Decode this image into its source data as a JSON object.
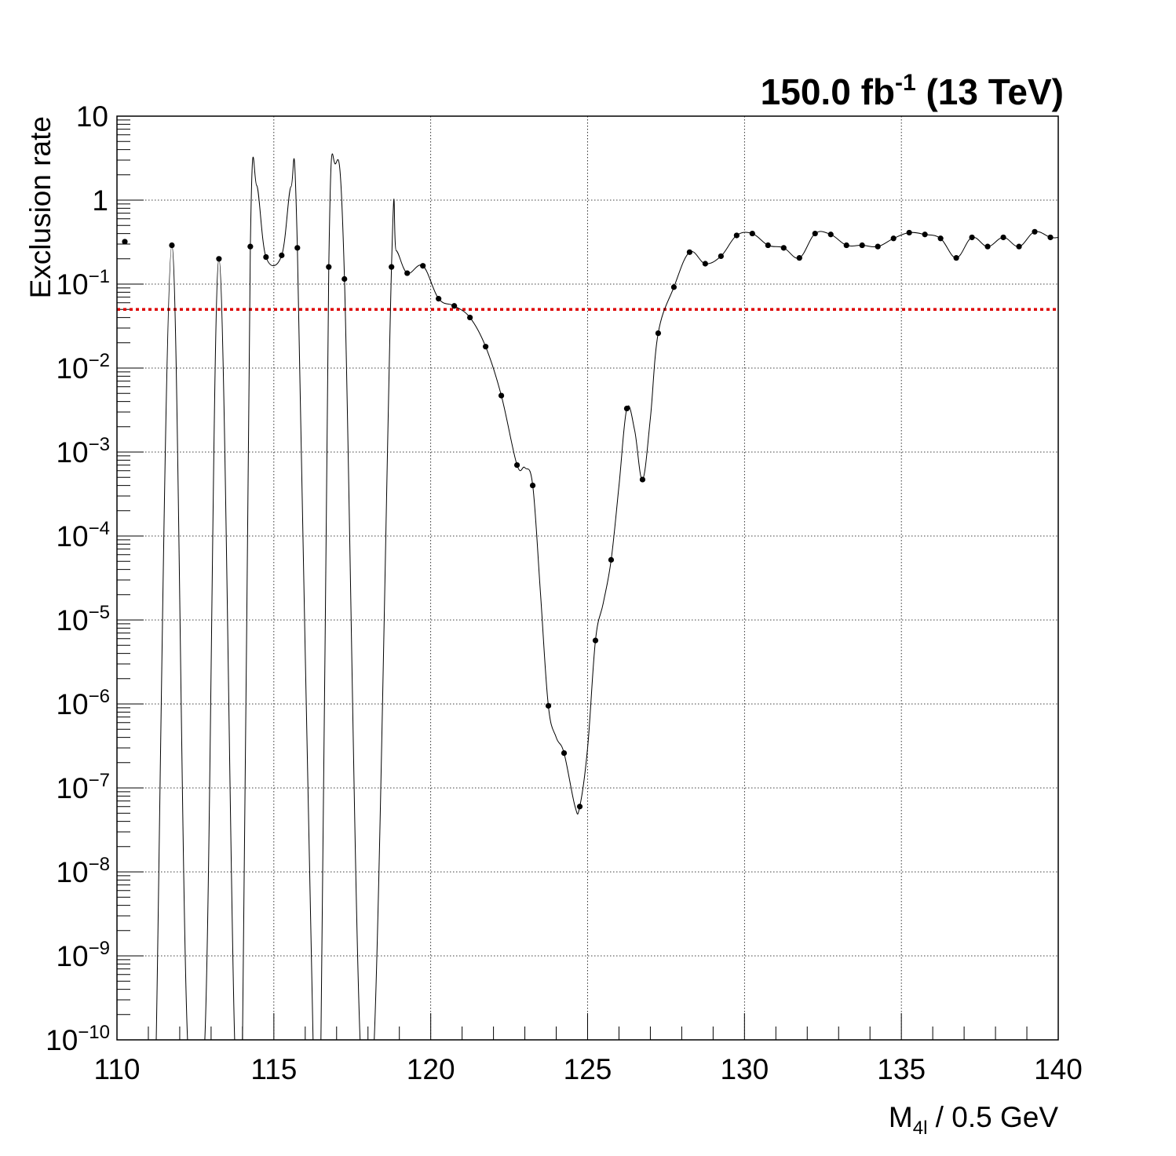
{
  "chart_data": {
    "type": "scatter",
    "header": {
      "lumi_value": "150.0 fb",
      "lumi_exponent": "-1",
      "energy": "(13 TeV)"
    },
    "xlabel": {
      "main": "M",
      "subscript": "4l",
      "suffix": " / 0.5 GeV"
    },
    "ylabel": "Exclusion rate",
    "xlim": [
      110,
      140
    ],
    "ylim": [
      1e-10,
      10
    ],
    "y_scale": "log",
    "grid": true,
    "x_ticks": [
      "110",
      "115",
      "120",
      "125",
      "130",
      "135",
      "140"
    ],
    "y_ticks": [
      {
        "value": 1e-10,
        "mantissa": "10",
        "exponent": "−10"
      },
      {
        "value": 1e-09,
        "mantissa": "10",
        "exponent": "−9"
      },
      {
        "value": 1e-08,
        "mantissa": "10",
        "exponent": "−8"
      },
      {
        "value": 1e-07,
        "mantissa": "10",
        "exponent": "−7"
      },
      {
        "value": 1e-06,
        "mantissa": "10",
        "exponent": "−6"
      },
      {
        "value": 1e-05,
        "mantissa": "10",
        "exponent": "−5"
      },
      {
        "value": 0.0001,
        "mantissa": "10",
        "exponent": "−4"
      },
      {
        "value": 0.001,
        "mantissa": "10",
        "exponent": "−3"
      },
      {
        "value": 0.01,
        "mantissa": "10",
        "exponent": "−2"
      },
      {
        "value": 0.1,
        "mantissa": "10",
        "exponent": "−1"
      },
      {
        "value": 1,
        "mantissa": "1",
        "exponent": ""
      },
      {
        "value": 10,
        "mantissa": "10",
        "exponent": ""
      }
    ],
    "threshold": {
      "value": 0.05,
      "color": "#dd0000",
      "style": "dotted"
    },
    "marker_color": "#000000",
    "points": [
      {
        "x": 110.25,
        "y": 0.32
      },
      {
        "x": 111.75,
        "y": 0.29
      },
      {
        "x": 113.25,
        "y": 0.2
      },
      {
        "x": 114.25,
        "y": 0.28
      },
      {
        "x": 114.75,
        "y": 0.21
      },
      {
        "x": 115.25,
        "y": 0.22
      },
      {
        "x": 115.75,
        "y": 0.27
      },
      {
        "x": 116.75,
        "y": 0.16
      },
      {
        "x": 117.25,
        "y": 0.115
      },
      {
        "x": 118.75,
        "y": 0.16
      },
      {
        "x": 119.25,
        "y": 0.135
      },
      {
        "x": 119.75,
        "y": 0.165
      },
      {
        "x": 120.25,
        "y": 0.067
      },
      {
        "x": 120.75,
        "y": 0.055
      },
      {
        "x": 121.25,
        "y": 0.04
      },
      {
        "x": 121.75,
        "y": 0.018
      },
      {
        "x": 122.25,
        "y": 0.0047
      },
      {
        "x": 122.75,
        "y": 0.0007
      },
      {
        "x": 123.25,
        "y": 0.0004
      },
      {
        "x": 123.75,
        "y": 9.5e-07
      },
      {
        "x": 124.25,
        "y": 2.6e-07
      },
      {
        "x": 124.75,
        "y": 6e-08
      },
      {
        "x": 125.25,
        "y": 5.7e-06
      },
      {
        "x": 125.75,
        "y": 5.2e-05
      },
      {
        "x": 126.25,
        "y": 0.0033
      },
      {
        "x": 126.75,
        "y": 0.00047
      },
      {
        "x": 127.25,
        "y": 0.026
      },
      {
        "x": 127.75,
        "y": 0.092
      },
      {
        "x": 128.25,
        "y": 0.24
      },
      {
        "x": 128.75,
        "y": 0.175
      },
      {
        "x": 129.25,
        "y": 0.215
      },
      {
        "x": 129.75,
        "y": 0.38
      },
      {
        "x": 130.25,
        "y": 0.4
      },
      {
        "x": 130.75,
        "y": 0.29
      },
      {
        "x": 131.25,
        "y": 0.27
      },
      {
        "x": 131.75,
        "y": 0.205
      },
      {
        "x": 132.25,
        "y": 0.4
      },
      {
        "x": 132.75,
        "y": 0.39
      },
      {
        "x": 133.25,
        "y": 0.29
      },
      {
        "x": 133.75,
        "y": 0.29
      },
      {
        "x": 134.25,
        "y": 0.28
      },
      {
        "x": 134.75,
        "y": 0.35
      },
      {
        "x": 135.25,
        "y": 0.41
      },
      {
        "x": 135.75,
        "y": 0.39
      },
      {
        "x": 136.25,
        "y": 0.35
      },
      {
        "x": 136.75,
        "y": 0.205
      },
      {
        "x": 137.25,
        "y": 0.36
      },
      {
        "x": 137.75,
        "y": 0.28
      },
      {
        "x": 138.25,
        "y": 0.36
      },
      {
        "x": 138.75,
        "y": 0.28
      },
      {
        "x": 139.25,
        "y": 0.42
      },
      {
        "x": 139.75,
        "y": 0.36
      }
    ],
    "curve": [
      {
        "x": 111.25,
        "y": 1e-10
      },
      {
        "x": 111.75,
        "y": 0.29
      },
      {
        "x": 112.25,
        "y": 1e-10
      },
      {
        "x": 112.8,
        "y": 1e-10
      },
      {
        "x": 113.25,
        "y": 0.2
      },
      {
        "x": 113.75,
        "y": 1e-10
      },
      {
        "x": 114.0,
        "y": 1e-10
      },
      {
        "x": 114.25,
        "y": 0.28
      },
      {
        "x": 114.45,
        "y": 1.5
      },
      {
        "x": 114.75,
        "y": 0.21
      },
      {
        "x": 115.25,
        "y": 0.22
      },
      {
        "x": 115.55,
        "y": 1.45
      },
      {
        "x": 115.75,
        "y": 0.27
      },
      {
        "x": 116.25,
        "y": 1e-10
      },
      {
        "x": 116.5,
        "y": 1e-10
      },
      {
        "x": 116.75,
        "y": 0.16
      },
      {
        "x": 116.95,
        "y": 2.7
      },
      {
        "x": 117.25,
        "y": 0.115
      },
      {
        "x": 117.75,
        "y": 1e-10
      },
      {
        "x": 118.2,
        "y": 1e-10
      },
      {
        "x": 118.75,
        "y": 0.16
      },
      {
        "x": 118.9,
        "y": 0.25
      },
      {
        "x": 119.25,
        "y": 0.135
      },
      {
        "x": 119.75,
        "y": 0.165
      },
      {
        "x": 120.25,
        "y": 0.067
      },
      {
        "x": 120.75,
        "y": 0.055
      },
      {
        "x": 121.25,
        "y": 0.04
      },
      {
        "x": 121.75,
        "y": 0.018
      },
      {
        "x": 122.25,
        "y": 0.0047
      },
      {
        "x": 122.75,
        "y": 0.0007
      },
      {
        "x": 123.0,
        "y": 0.00065
      },
      {
        "x": 123.25,
        "y": 0.0004
      },
      {
        "x": 123.5,
        "y": 2e-05
      },
      {
        "x": 123.75,
        "y": 9.5e-07
      },
      {
        "x": 124.0,
        "y": 4e-07
      },
      {
        "x": 124.25,
        "y": 2.6e-07
      },
      {
        "x": 124.6,
        "y": 6e-08
      },
      {
        "x": 124.75,
        "y": 6e-08
      },
      {
        "x": 125.0,
        "y": 3e-07
      },
      {
        "x": 125.25,
        "y": 5.7e-06
      },
      {
        "x": 125.5,
        "y": 1.6e-05
      },
      {
        "x": 125.75,
        "y": 5.2e-05
      },
      {
        "x": 126.0,
        "y": 0.0004
      },
      {
        "x": 126.25,
        "y": 0.0033
      },
      {
        "x": 126.5,
        "y": 0.0018
      },
      {
        "x": 126.75,
        "y": 0.00047
      },
      {
        "x": 127.0,
        "y": 0.0025
      },
      {
        "x": 127.25,
        "y": 0.026
      },
      {
        "x": 127.75,
        "y": 0.092
      },
      {
        "x": 128.25,
        "y": 0.24
      },
      {
        "x": 128.75,
        "y": 0.175
      },
      {
        "x": 129.25,
        "y": 0.215
      },
      {
        "x": 129.75,
        "y": 0.38
      },
      {
        "x": 130.25,
        "y": 0.4
      },
      {
        "x": 130.75,
        "y": 0.29
      },
      {
        "x": 131.25,
        "y": 0.27
      },
      {
        "x": 131.75,
        "y": 0.205
      },
      {
        "x": 132.25,
        "y": 0.4
      },
      {
        "x": 132.75,
        "y": 0.39
      },
      {
        "x": 133.25,
        "y": 0.29
      },
      {
        "x": 133.75,
        "y": 0.29
      },
      {
        "x": 134.25,
        "y": 0.28
      },
      {
        "x": 134.75,
        "y": 0.35
      },
      {
        "x": 135.25,
        "y": 0.41
      },
      {
        "x": 135.75,
        "y": 0.39
      },
      {
        "x": 136.25,
        "y": 0.35
      },
      {
        "x": 136.75,
        "y": 0.205
      },
      {
        "x": 137.25,
        "y": 0.36
      },
      {
        "x": 137.75,
        "y": 0.28
      },
      {
        "x": 138.25,
        "y": 0.36
      },
      {
        "x": 138.75,
        "y": 0.28
      },
      {
        "x": 139.25,
        "y": 0.42
      },
      {
        "x": 139.75,
        "y": 0.36
      },
      {
        "x": 140.0,
        "y": 0.36
      }
    ]
  }
}
